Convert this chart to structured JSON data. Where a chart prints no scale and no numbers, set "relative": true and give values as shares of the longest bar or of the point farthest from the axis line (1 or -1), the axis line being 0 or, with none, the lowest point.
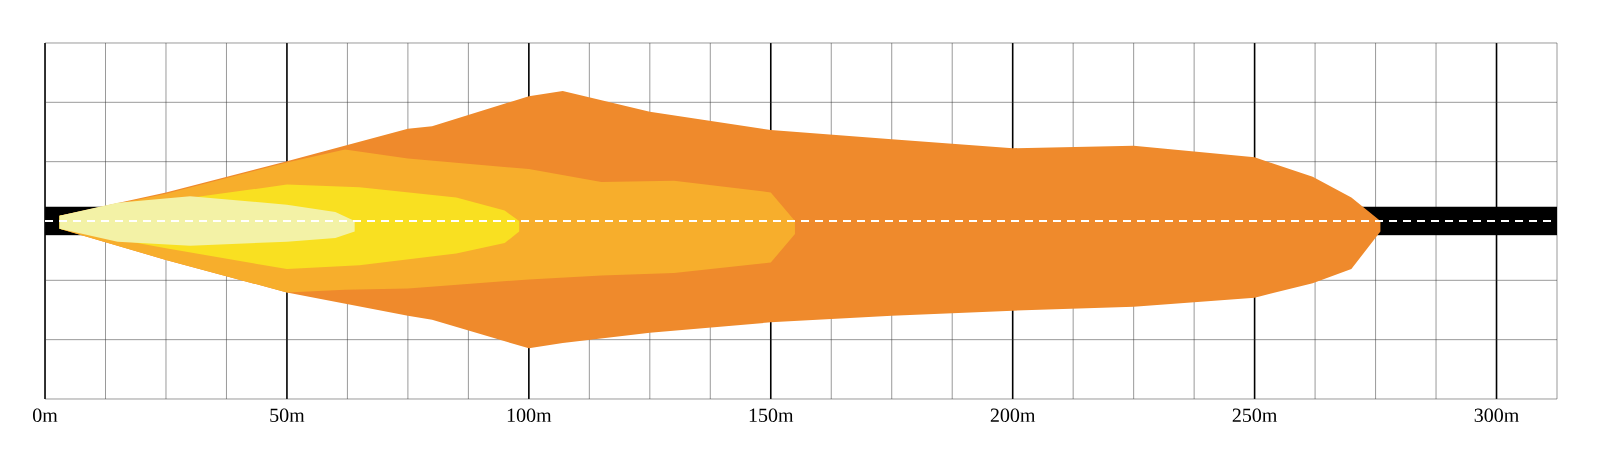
{
  "chart_data": {
    "type": "area",
    "relative": true,
    "xlim": [
      0,
      312.5
    ],
    "xticks": [
      {
        "value": 0,
        "label": "0m"
      },
      {
        "value": 12.5,
        "label": null
      },
      {
        "value": 25,
        "label": null
      },
      {
        "value": 37.5,
        "label": null
      },
      {
        "value": 50,
        "label": "50m"
      },
      {
        "value": 62.5,
        "label": null
      },
      {
        "value": 75,
        "label": null
      },
      {
        "value": 87.5,
        "label": null
      },
      {
        "value": 100,
        "label": "100m"
      },
      {
        "value": 112.5,
        "label": null
      },
      {
        "value": 125,
        "label": null
      },
      {
        "value": 137.5,
        "label": null
      },
      {
        "value": 150,
        "label": "150m"
      },
      {
        "value": 162.5,
        "label": null
      },
      {
        "value": 175,
        "label": null
      },
      {
        "value": 187.5,
        "label": null
      },
      {
        "value": 200,
        "label": "200m"
      },
      {
        "value": 212.5,
        "label": null
      },
      {
        "value": 225,
        "label": null
      },
      {
        "value": 237.5,
        "label": null
      },
      {
        "value": 250,
        "label": "250m"
      },
      {
        "value": 262.5,
        "label": null
      },
      {
        "value": 275,
        "label": null
      },
      {
        "value": 287.5,
        "label": null
      },
      {
        "value": 300,
        "label": "300m"
      }
    ],
    "grid": true,
    "bands": [
      {
        "axis": "y",
        "from": -0.11,
        "to": 0.11,
        "color": "#000000"
      }
    ],
    "ref_lines": [
      {
        "axis": "y",
        "value": 0,
        "color": "#ffffff",
        "line_style": "dashed"
      }
    ],
    "series": [
      {
        "color": "#ef8a2c",
        "x": [
          3,
          25,
          50,
          75,
          80,
          100,
          107,
          125,
          150,
          175,
          200,
          225,
          250,
          262,
          270,
          276
        ],
        "values": [
          0.04,
          0.22,
          0.46,
          0.71,
          0.73,
          0.96,
          1.0,
          0.84,
          0.7,
          0.63,
          0.56,
          0.58,
          0.49,
          0.34,
          0.18,
          0.0
        ]
      },
      {
        "color": "#ef8a2c",
        "x": [
          3,
          25,
          50,
          75,
          80,
          100,
          107,
          125,
          150,
          175,
          200,
          225,
          250,
          262,
          270,
          276
        ],
        "values": [
          -0.06,
          -0.3,
          -0.55,
          -0.73,
          -0.76,
          -0.98,
          -0.94,
          -0.86,
          -0.78,
          -0.73,
          -0.69,
          -0.66,
          -0.59,
          -0.48,
          -0.37,
          -0.08
        ]
      },
      {
        "color": "#f7ae2c",
        "x": [
          3,
          25,
          50,
          62,
          75,
          100,
          115,
          130,
          150,
          155
        ],
        "values": [
          0.04,
          0.21,
          0.45,
          0.55,
          0.48,
          0.4,
          0.3,
          0.31,
          0.22,
          0.0
        ]
      },
      {
        "color": "#f7ae2c",
        "x": [
          3,
          25,
          50,
          62,
          75,
          100,
          115,
          130,
          150,
          155
        ],
        "values": [
          -0.06,
          -0.3,
          -0.55,
          -0.53,
          -0.52,
          -0.45,
          -0.42,
          -0.4,
          -0.32,
          -0.1
        ]
      },
      {
        "color": "#f9e021",
        "x": [
          3,
          50,
          65,
          85,
          95,
          98
        ],
        "values": [
          0.04,
          0.28,
          0.26,
          0.18,
          0.08,
          0.0
        ]
      },
      {
        "color": "#f9e021",
        "x": [
          3,
          25,
          50,
          65,
          85,
          95,
          98
        ],
        "values": [
          -0.06,
          -0.21,
          -0.37,
          -0.34,
          -0.25,
          -0.17,
          -0.08
        ]
      },
      {
        "color": "#f3f2a6",
        "x": [
          3,
          15,
          30,
          50,
          60,
          64
        ],
        "values": [
          0.04,
          0.14,
          0.19,
          0.125,
          0.07,
          0.0
        ]
      },
      {
        "color": "#f3f2a6",
        "x": [
          3,
          15,
          30,
          50,
          60,
          64
        ],
        "values": [
          -0.06,
          -0.16,
          -0.19,
          -0.16,
          -0.13,
          -0.08
        ]
      }
    ]
  }
}
